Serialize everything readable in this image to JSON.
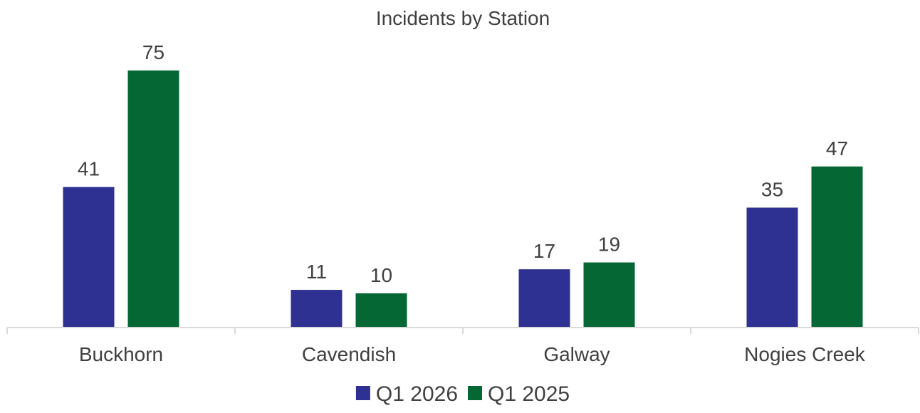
{
  "chart_data": {
    "type": "bar",
    "title": "Incidents by Station",
    "categories": [
      "Buckhorn",
      "Cavendish",
      "Galway",
      "Nogies Creek"
    ],
    "series": [
      {
        "name": "Q1 2026",
        "values": [
          41,
          11,
          17,
          35
        ],
        "color": "#2E3192"
      },
      {
        "name": "Q1 2025",
        "values": [
          75,
          10,
          19,
          47
        ],
        "color": "#046734"
      }
    ],
    "ylim": [
      0,
      75
    ],
    "grid": false,
    "legend_position": "bottom",
    "axis_color": "#D9D9D9",
    "text_color": "#404040"
  }
}
